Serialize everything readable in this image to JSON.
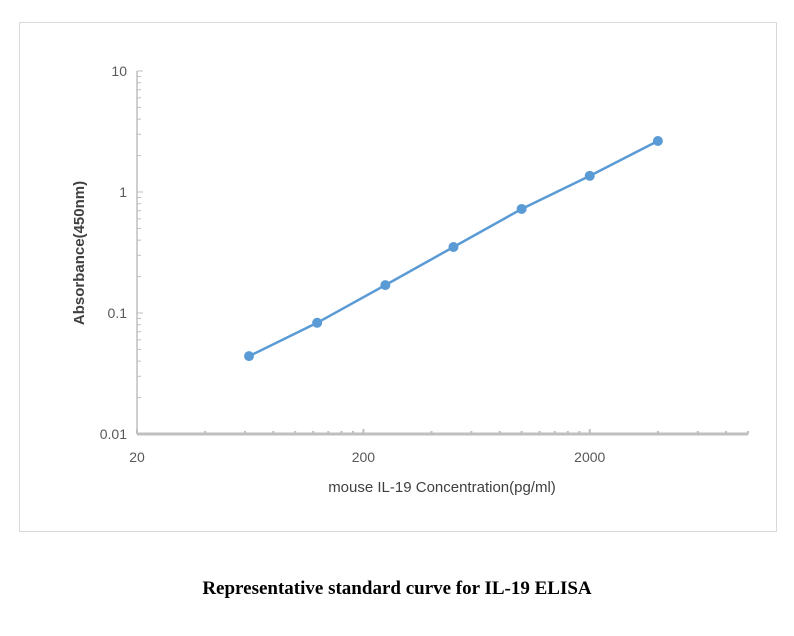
{
  "chart_data": {
    "type": "line",
    "xlabel": "mouse IL-19 Concentration(pg/ml)",
    "ylabel": "Absorbance(450nm)",
    "x_scale": "log",
    "y_scale": "log",
    "xlim": [
      20,
      10000
    ],
    "ylim": [
      0.01,
      10
    ],
    "x_ticks": [
      "20",
      "200",
      "2000"
    ],
    "y_ticks": [
      "0.01",
      "0.1",
      "1",
      "10"
    ],
    "grid": false,
    "legend": "none",
    "series": [
      {
        "x": [
          62.5,
          125,
          250,
          500,
          1000,
          2000,
          4000
        ],
        "y": [
          0.044,
          0.083,
          0.17,
          0.351,
          0.724,
          1.36,
          2.64
        ],
        "color": "#5b9bd5"
      }
    ]
  },
  "caption": "Representative standard curve for IL-19 ELISA"
}
